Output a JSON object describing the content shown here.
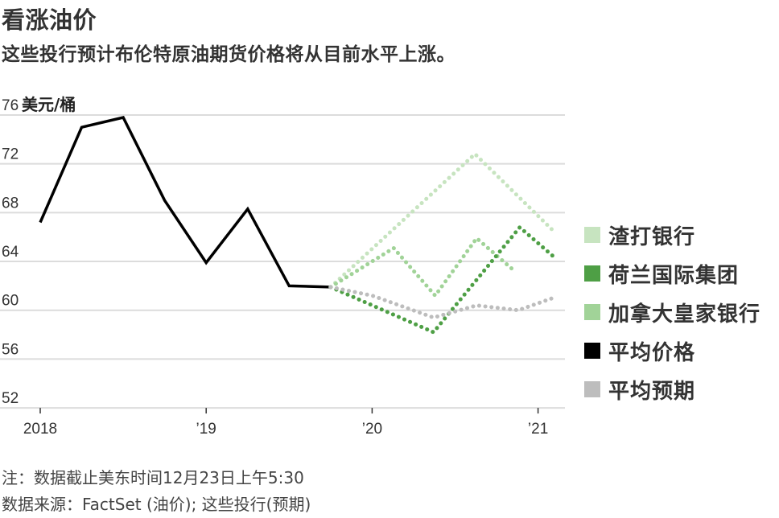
{
  "header": {
    "title": "看涨油价",
    "subtitle": "这些投行预计布伦特原油期货价格将从目前水平上涨。"
  },
  "footer": {
    "note": "注：数据截止美东时间12月23日上午5:30",
    "source": "数据来源：FactSet (油价); 这些投行(预期)"
  },
  "legend": [
    {
      "label": "渣打银行",
      "color": "#c7e4c0"
    },
    {
      "label": "荷兰国际集团",
      "color": "#4e9f45"
    },
    {
      "label": "加拿大皇家银行",
      "color": "#a1d398"
    },
    {
      "label": "平均价格",
      "color": "#000000"
    },
    {
      "label": "平均预期",
      "color": "#bdbdbd"
    }
  ],
  "chart_data": {
    "type": "line",
    "title": "看涨油价",
    "subtitle": "这些投行预计布伦特原油期货价格将从目前水平上涨。",
    "xlabel": "",
    "ylabel": "美元/桶",
    "ylim": [
      52,
      76
    ],
    "yticks": [
      76,
      72,
      68,
      64,
      60,
      56,
      52
    ],
    "xticks": [
      {
        "label": "2018",
        "x": 2018.0
      },
      {
        "label": "’19",
        "x": 2019.0
      },
      {
        "label": "’20",
        "x": 2020.0
      },
      {
        "label": "’21",
        "x": 2021.0
      }
    ],
    "xlim": [
      2018.0,
      2021.17
    ],
    "grid": true,
    "legend_position": "right",
    "series": [
      {
        "name": "平均价格",
        "color": "#000000",
        "style": "solid",
        "x": [
          2018.0,
          2018.25,
          2018.5,
          2018.75,
          2019.0,
          2019.25,
          2019.5,
          2019.75
        ],
        "values": [
          67.2,
          75.0,
          75.8,
          69.0,
          63.9,
          68.3,
          62.0,
          61.9
        ]
      },
      {
        "name": "渣打银行",
        "color": "#c7e4c0",
        "style": "dotted",
        "x": [
          2019.75,
          2020.62,
          2021.1
        ],
        "values": [
          61.9,
          72.8,
          66.4
        ]
      },
      {
        "name": "加拿大皇家银行",
        "color": "#a1d398",
        "style": "dotted",
        "x": [
          2019.75,
          2020.13,
          2020.38,
          2020.63,
          2020.86
        ],
        "values": [
          61.9,
          65.1,
          61.2,
          65.9,
          63.2
        ]
      },
      {
        "name": "荷兰国际集团",
        "color": "#4e9f45",
        "style": "dotted",
        "x": [
          2019.75,
          2020.37,
          2020.89,
          2021.11
        ],
        "values": [
          61.9,
          58.2,
          66.8,
          64.2
        ]
      },
      {
        "name": "平均预期",
        "color": "#bdbdbd",
        "style": "dotted",
        "x": [
          2019.75,
          2020.0,
          2020.37,
          2020.63,
          2020.88,
          2021.11
        ],
        "values": [
          61.9,
          61.2,
          59.4,
          60.4,
          60.0,
          61.1
        ]
      }
    ]
  }
}
